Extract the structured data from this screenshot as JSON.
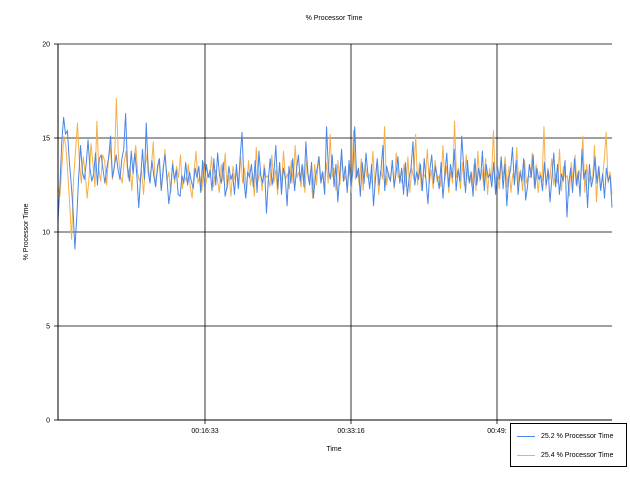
{
  "chart_data": {
    "type": "line",
    "title": "% Processor Time",
    "xlabel": "Time",
    "ylabel": "% Processor Time",
    "ylim": [
      0,
      20
    ],
    "yticks": [
      0,
      5,
      10,
      15,
      20
    ],
    "xticks": [
      "00:16:33",
      "00:33:16",
      "00:49:"
    ],
    "grid": true,
    "legend_position": "bottom-right",
    "series": [
      {
        "name": "25.2 % Processor Time",
        "color": "#4a86e8",
        "values": [
          10.6,
          12.4,
          14.8,
          16.1,
          15.2,
          15.4,
          13.8,
          12.6,
          11.2,
          9.1,
          10.8,
          12.9,
          14.6,
          13.2,
          12.8,
          13.6,
          14.9,
          13.4,
          12.7,
          13.1,
          14.2,
          12.5,
          13.9,
          14.1,
          13.3,
          12.6,
          13.4,
          14.0,
          15.1,
          12.9,
          13.5,
          14.1,
          13.3,
          12.8,
          13.9,
          14.4,
          16.3,
          13.5,
          12.7,
          14.3,
          13.1,
          14.2,
          13.0,
          11.3,
          12.9,
          14.4,
          12.8,
          15.8,
          13.2,
          12.6,
          13.8,
          13.0,
          12.4,
          13.5,
          13.9,
          12.2,
          13.4,
          14.1,
          12.9,
          11.5,
          12.3,
          13.6,
          12.8,
          13.3,
          12.0,
          11.9,
          13.0,
          12.6,
          13.7,
          12.5,
          13.2,
          12.7,
          12.3,
          13.4,
          12.9,
          13.5,
          12.1,
          13.8,
          12.4,
          13.6,
          12.9,
          13.3,
          12.2,
          13.9,
          12.5,
          14.2,
          13.0,
          12.6,
          13.7,
          11.9,
          12.4,
          13.5,
          12.8,
          13.1,
          12.0,
          13.6,
          12.3,
          14.0,
          15.3,
          12.7,
          11.8,
          13.2,
          12.9,
          13.6,
          12.4,
          13.8,
          12.1,
          14.3,
          13.0,
          12.6,
          13.4,
          11.0,
          12.8,
          13.9,
          12.5,
          13.2,
          14.6,
          12.3,
          13.7,
          12.0,
          13.4,
          12.9,
          11.4,
          13.5,
          12.6,
          13.9,
          12.2,
          13.3,
          14.1,
          12.7,
          13.6,
          12.4,
          14.8,
          13.1,
          12.5,
          13.7,
          11.8,
          12.9,
          13.4,
          14.0,
          12.6,
          13.2,
          12.0,
          15.6,
          13.3,
          12.8,
          14.1,
          12.4,
          13.6,
          11.6,
          13.0,
          14.4,
          12.7,
          13.5,
          12.1,
          13.8,
          12.4,
          13.2,
          15.6,
          12.9,
          13.4,
          11.9,
          13.7,
          12.6,
          14.2,
          13.1,
          12.3,
          13.6,
          11.4,
          12.8,
          13.9,
          12.5,
          13.3,
          14.6,
          12.2,
          13.5,
          13.0,
          12.7,
          13.8,
          12.4,
          13.1,
          14.0,
          12.6,
          13.4,
          12.0,
          13.7,
          11.9,
          12.9,
          13.4,
          14.8,
          12.5,
          13.2,
          12.8,
          13.6,
          12.2,
          13.9,
          12.7,
          11.5,
          13.3,
          14.1,
          12.6,
          13.5,
          12.9,
          12.3,
          13.7,
          11.8,
          13.0,
          14.2,
          12.4,
          13.6,
          12.9,
          14.4,
          12.2,
          13.3,
          12.7,
          15.1,
          13.5,
          12.1,
          13.8,
          12.6,
          13.2,
          11.9,
          13.9,
          12.5,
          13.4,
          12.8,
          14.3,
          12.2,
          13.6,
          12.9,
          13.1,
          12.4,
          13.7,
          12.0,
          13.5,
          12.8,
          14.0,
          12.3,
          13.6,
          11.4,
          12.9,
          13.3,
          14.5,
          12.5,
          13.8,
          12.0,
          13.2,
          12.7,
          13.9,
          11.7,
          12.4,
          13.6,
          12.9,
          14.1,
          12.3,
          13.4,
          12.8,
          13.0,
          12.2,
          13.7,
          12.5,
          13.3,
          11.6,
          12.9,
          14.2,
          12.4,
          13.6,
          12.0,
          13.1,
          12.7,
          13.8,
          10.8,
          12.6,
          13.4,
          12.1,
          13.9,
          12.5,
          13.2,
          11.9,
          14.4,
          12.8,
          13.3,
          11.3,
          13.6,
          12.4,
          12.9,
          14.0,
          12.6,
          13.5,
          12.2,
          13.1,
          11.8,
          13.4,
          12.7,
          13.0,
          11.3
        ]
      },
      {
        "name": "25.4 % Processor Time",
        "color": "#f6b04a",
        "values": [
          12.4,
          11.9,
          13.5,
          15.1,
          14.6,
          13.2,
          11.5,
          9.6,
          12.8,
          14.3,
          15.8,
          13.7,
          12.6,
          14.0,
          13.1,
          11.8,
          12.9,
          14.7,
          13.6,
          12.4,
          15.9,
          13.3,
          12.7,
          14.1,
          13.8,
          12.5,
          13.9,
          14.5,
          12.8,
          13.4,
          17.1,
          14.2,
          13.0,
          12.6,
          13.7,
          14.3,
          12.9,
          13.5,
          12.2,
          13.8,
          14.6,
          13.1,
          12.7,
          13.3,
          12.0,
          13.6,
          14.2,
          12.8,
          13.4,
          14.8,
          12.5,
          13.1,
          13.9,
          12.3,
          13.0,
          14.4,
          12.7,
          13.2,
          12.1,
          13.8,
          12.6,
          13.5,
          12.9,
          14.1,
          12.3,
          13.0,
          12.7,
          13.6,
          12.4,
          11.8,
          13.2,
          14.3,
          12.6,
          13.0,
          12.2,
          13.7,
          12.5,
          13.1,
          12.9,
          14.0,
          12.4,
          13.3,
          12.8,
          12.1,
          13.6,
          12.7,
          14.2,
          12.3,
          13.0,
          11.9,
          13.5,
          12.8,
          13.2,
          12.4,
          14.0,
          12.6,
          13.4,
          12.1,
          13.8,
          12.5,
          13.1,
          11.9,
          14.5,
          12.7,
          13.3,
          12.2,
          13.6,
          12.9,
          13.0,
          12.4,
          14.1,
          12.6,
          13.3,
          12.0,
          13.7,
          12.5,
          14.3,
          12.8,
          13.1,
          12.3,
          13.8,
          12.6,
          14.6,
          12.9,
          13.2,
          12.4,
          13.5,
          12.1,
          13.9,
          12.7,
          13.3,
          11.8,
          13.6,
          12.5,
          14.0,
          12.8,
          13.2,
          12.3,
          13.7,
          12.6,
          15.2,
          12.9,
          13.4,
          12.2,
          13.8,
          12.5,
          14.1,
          12.7,
          13.0,
          12.4,
          13.6,
          12.1,
          15.4,
          12.8,
          13.3,
          12.5,
          13.9,
          12.2,
          13.6,
          12.9,
          13.1,
          12.6,
          14.3,
          12.4,
          13.7,
          12.0,
          13.3,
          12.8,
          15.6,
          12.5,
          13.2,
          12.7,
          13.8,
          12.3,
          14.2,
          12.9,
          13.0,
          12.6,
          13.6,
          12.4,
          14.0,
          12.1,
          13.4,
          12.8,
          15.2,
          12.5,
          13.7,
          12.2,
          13.1,
          12.9,
          14.4,
          12.6,
          13.3,
          12.3,
          13.8,
          12.7,
          13.0,
          12.4,
          14.6,
          12.8,
          13.5,
          12.1,
          13.2,
          12.6,
          15.9,
          12.9,
          13.4,
          12.3,
          13.7,
          12.5,
          14.1,
          12.8,
          13.0,
          12.4,
          13.6,
          12.2,
          14.3,
          12.7,
          13.3,
          12.5,
          13.9,
          12.0,
          13.4,
          12.8,
          15.4,
          12.6,
          13.2,
          12.3,
          13.7,
          12.9,
          14.0,
          12.4,
          13.5,
          12.1,
          13.1,
          12.7,
          14.5,
          12.5,
          13.3,
          12.2,
          13.8,
          12.6,
          13.0,
          12.9,
          14.2,
          12.4,
          13.6,
          12.1,
          13.2,
          12.7,
          15.6,
          12.3,
          13.4,
          12.8,
          13.9,
          12.5,
          13.1,
          12.6,
          14.4,
          12.2,
          13.5,
          12.9,
          13.0,
          11.9,
          13.7,
          12.6,
          14.1,
          12.4,
          13.3,
          12.8,
          15.1,
          12.1,
          13.6,
          12.5,
          13.0,
          12.7,
          14.6,
          11.6,
          13.4,
          12.3,
          12.8,
          13.8,
          15.3,
          12.6,
          13.2,
          12.0
        ]
      }
    ]
  }
}
